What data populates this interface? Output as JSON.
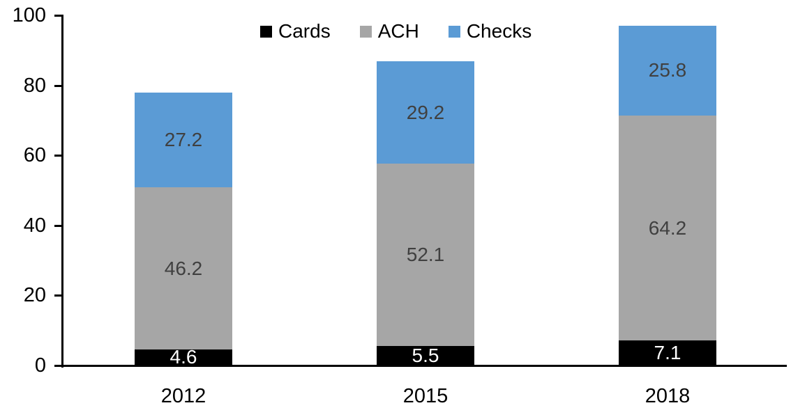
{
  "chart_data": {
    "type": "bar",
    "stacked": true,
    "title": "",
    "xlabel": "",
    "ylabel": "",
    "categories": [
      "2012",
      "2015",
      "2018"
    ],
    "series": [
      {
        "name": "Cards",
        "color": "#000000",
        "label_color": "#FFFFFF",
        "values": [
          4.6,
          5.5,
          7.1
        ]
      },
      {
        "name": "ACH",
        "color": "#A6A6A6",
        "label_color": "#404040",
        "values": [
          46.2,
          52.1,
          64.2
        ]
      },
      {
        "name": "Checks",
        "color": "#5B9BD5",
        "label_color": "#404040",
        "values": [
          27.2,
          29.2,
          25.8
        ]
      }
    ],
    "totals": [
      78.0,
      86.8,
      97.1
    ],
    "ylim": [
      0,
      100
    ],
    "yticks": [
      0,
      20,
      40,
      60,
      80,
      100
    ],
    "grid": false,
    "legend_position": "top-center",
    "axis_color": "#000000",
    "background_color": "#FFFFFF"
  }
}
